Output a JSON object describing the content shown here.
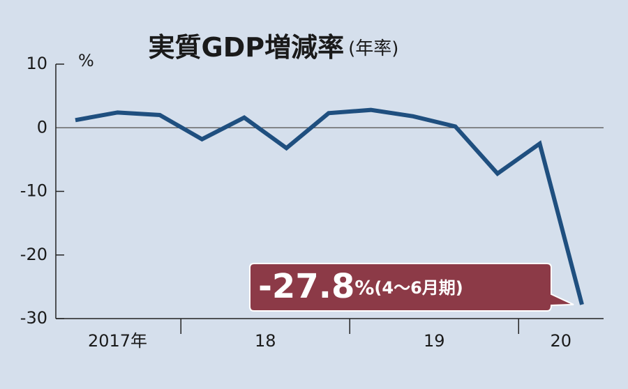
{
  "chart_data": {
    "type": "line",
    "title": "実質GDP増減率",
    "subtitle": "(年率)",
    "y_unit": "%",
    "categories": [
      "2017年",
      null,
      null,
      "18",
      null,
      null,
      null,
      "19",
      null,
      null,
      null,
      "20",
      null
    ],
    "series": [
      {
        "color": "#1f4f7f",
        "values": [
          1.2,
          2.4,
          2.0,
          -1.8,
          1.6,
          -3.2,
          2.3,
          2.8,
          1.8,
          0.2,
          -7.2,
          -2.5,
          -27.8
        ]
      }
    ],
    "ylim": [
      -30,
      10
    ],
    "yticks": [
      -30,
      -20,
      -10,
      0,
      10
    ],
    "annotation": {
      "unit": "%",
      "note": "(4〜6月期)",
      "color": "#8c3a47"
    }
  }
}
